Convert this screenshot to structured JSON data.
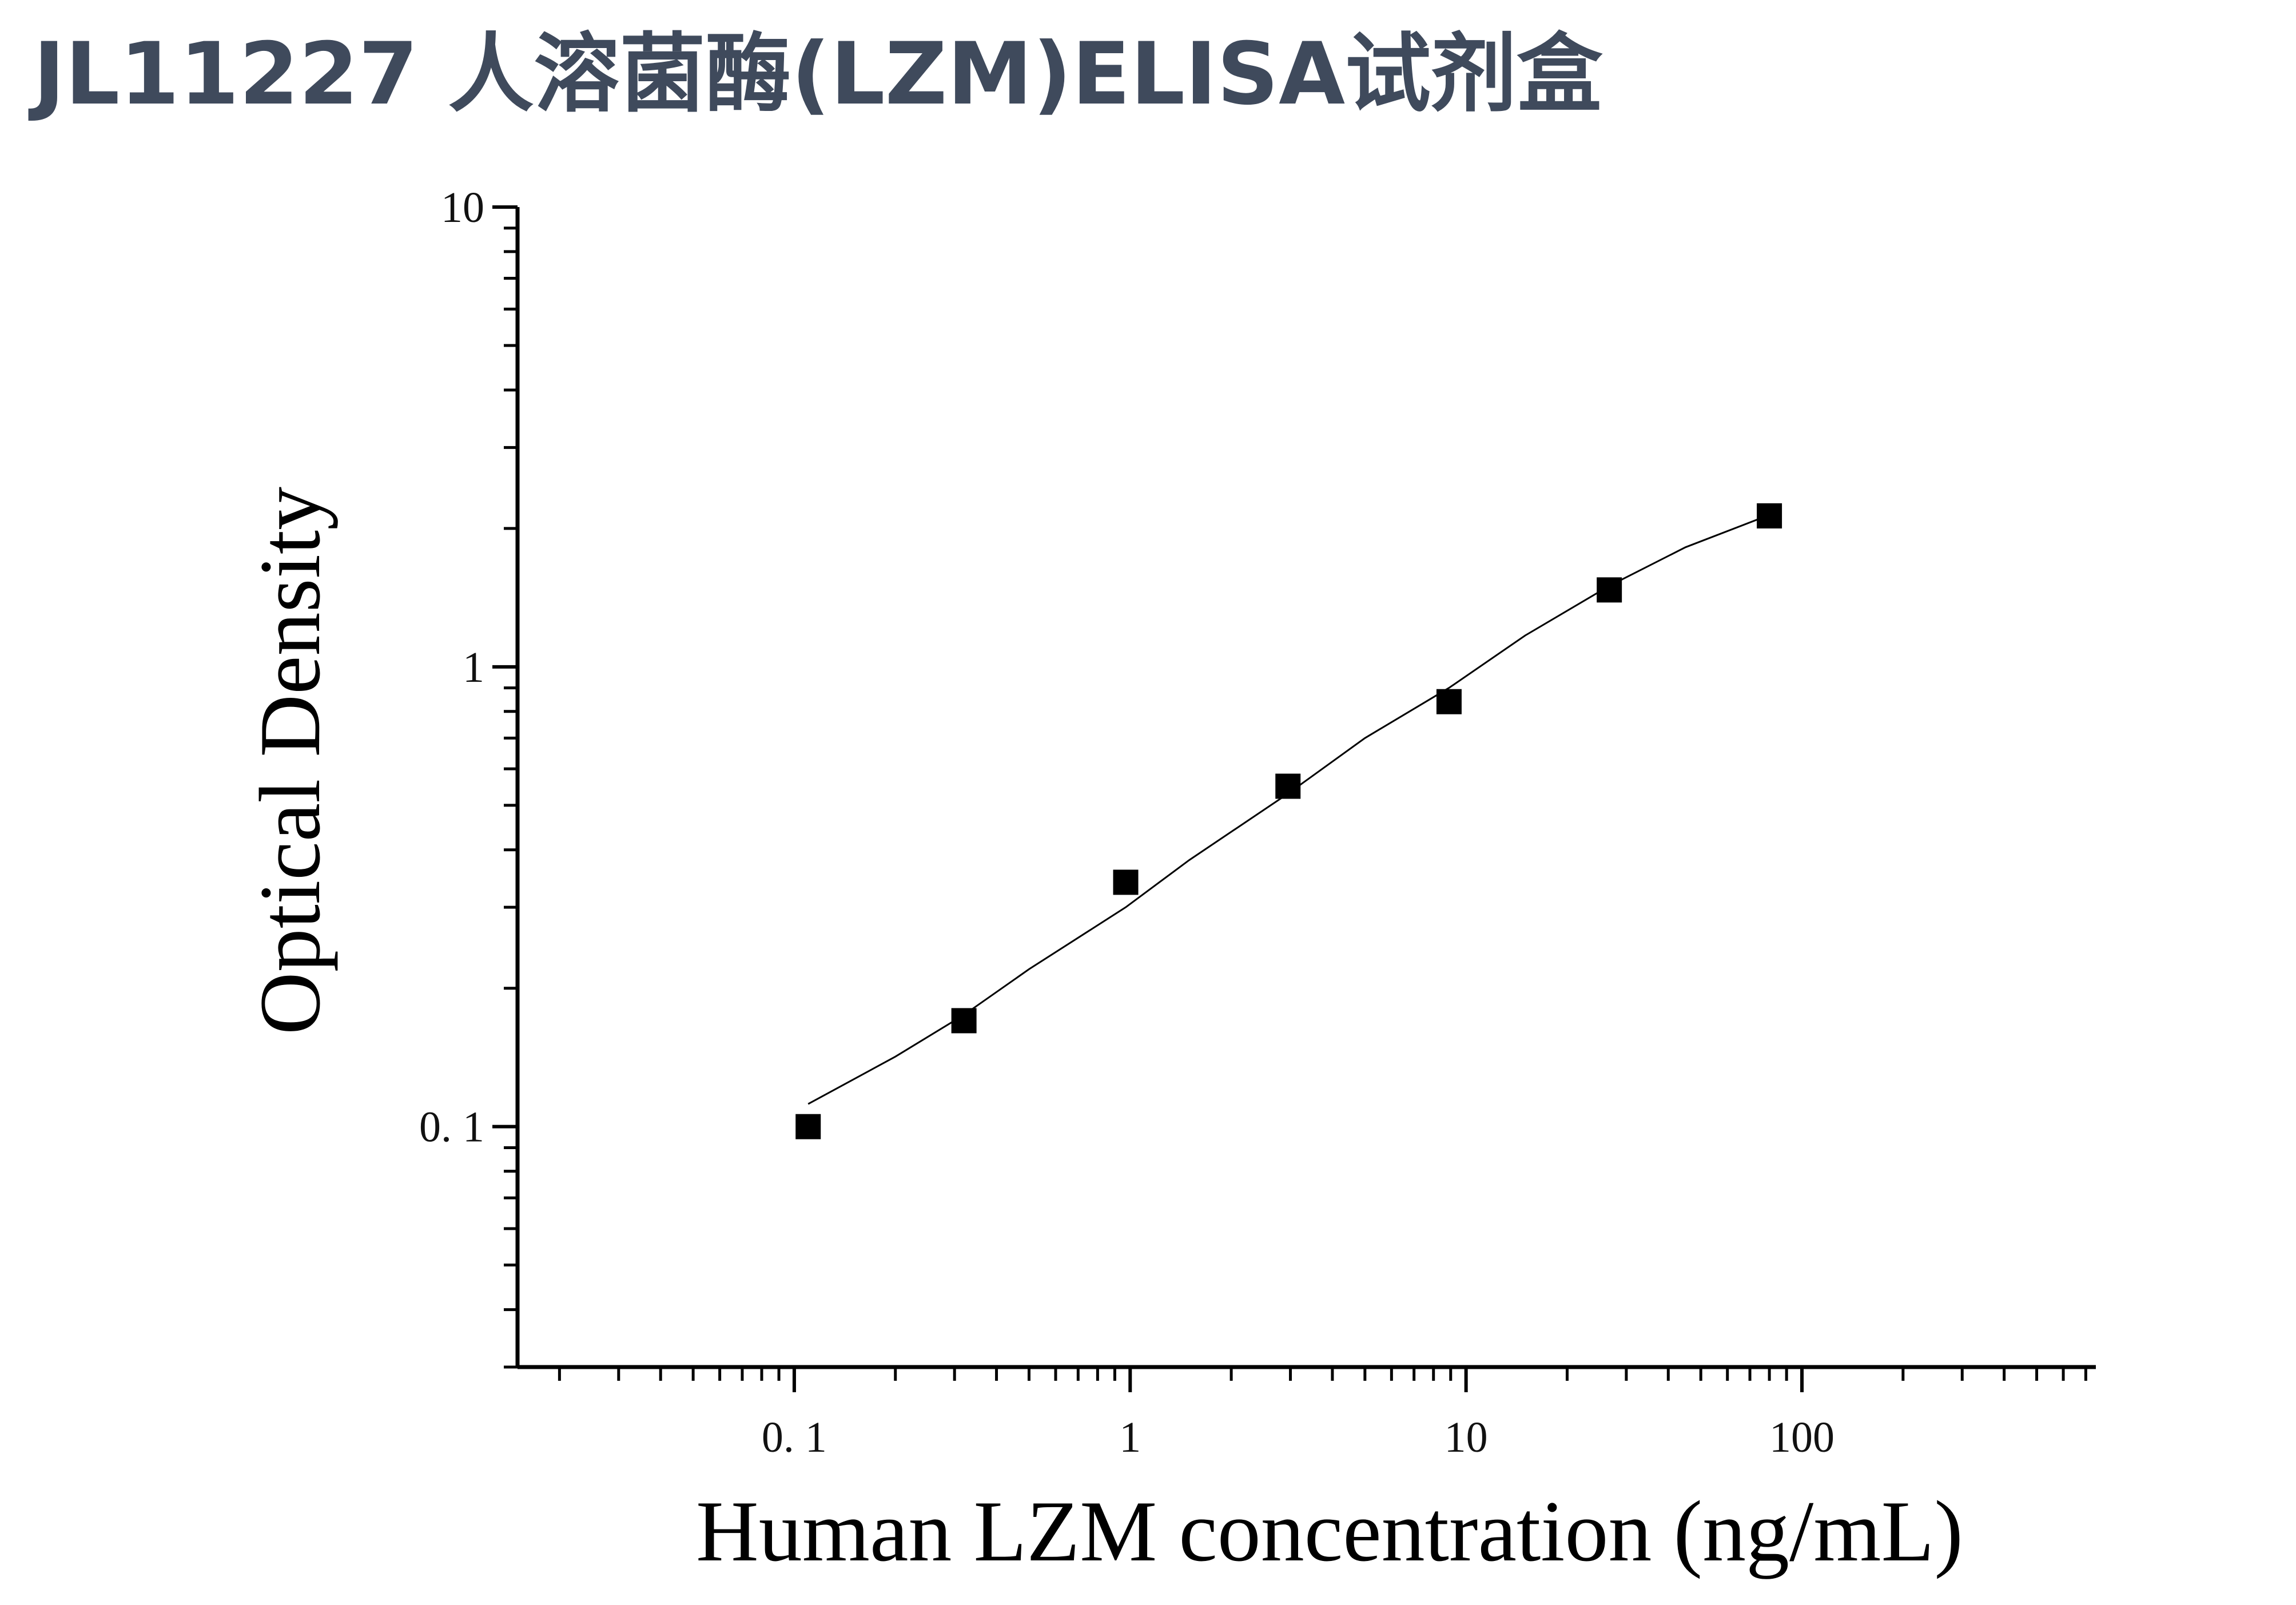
{
  "title": "JL11227 人溶菌酶(LZM)ELISA试剂盒",
  "colors": {
    "title": "#3f4a5c",
    "axis": "#000000",
    "marker": "#000000"
  },
  "chart_data": {
    "type": "scatter",
    "title": "",
    "xlabel": "Human LZM concentration (ng/mL)",
    "ylabel": "Optical Density",
    "x_scale": "log",
    "y_scale": "log",
    "xlim": [
      0.015,
      750
    ],
    "ylim": [
      0.03,
      10
    ],
    "x_ticks": [
      {
        "value": 0.1,
        "label": "0. 1"
      },
      {
        "value": 1,
        "label": "1"
      },
      {
        "value": 10,
        "label": "10"
      },
      {
        "value": 100,
        "label": "100"
      }
    ],
    "y_ticks": [
      {
        "value": 0.1,
        "label": "0. 1"
      },
      {
        "value": 1,
        "label": "1"
      },
      {
        "value": 10,
        "label": "10"
      }
    ],
    "grid": false,
    "legend": "none",
    "marker": "square",
    "points": [
      {
        "x": 0.11,
        "y": 0.1
      },
      {
        "x": 0.32,
        "y": 0.17
      },
      {
        "x": 0.97,
        "y": 0.34
      },
      {
        "x": 2.95,
        "y": 0.55
      },
      {
        "x": 8.9,
        "y": 0.84
      },
      {
        "x": 26.7,
        "y": 1.47
      },
      {
        "x": 80,
        "y": 2.13
      }
    ],
    "fit_curve": {
      "type": "line",
      "x": [
        0.11,
        0.2,
        0.32,
        0.5,
        0.97,
        1.5,
        2.95,
        5,
        8.9,
        15,
        26.7,
        45,
        80
      ],
      "y": [
        0.112,
        0.142,
        0.175,
        0.22,
        0.3,
        0.38,
        0.53,
        0.7,
        0.9,
        1.17,
        1.5,
        1.82,
        2.14
      ]
    }
  }
}
